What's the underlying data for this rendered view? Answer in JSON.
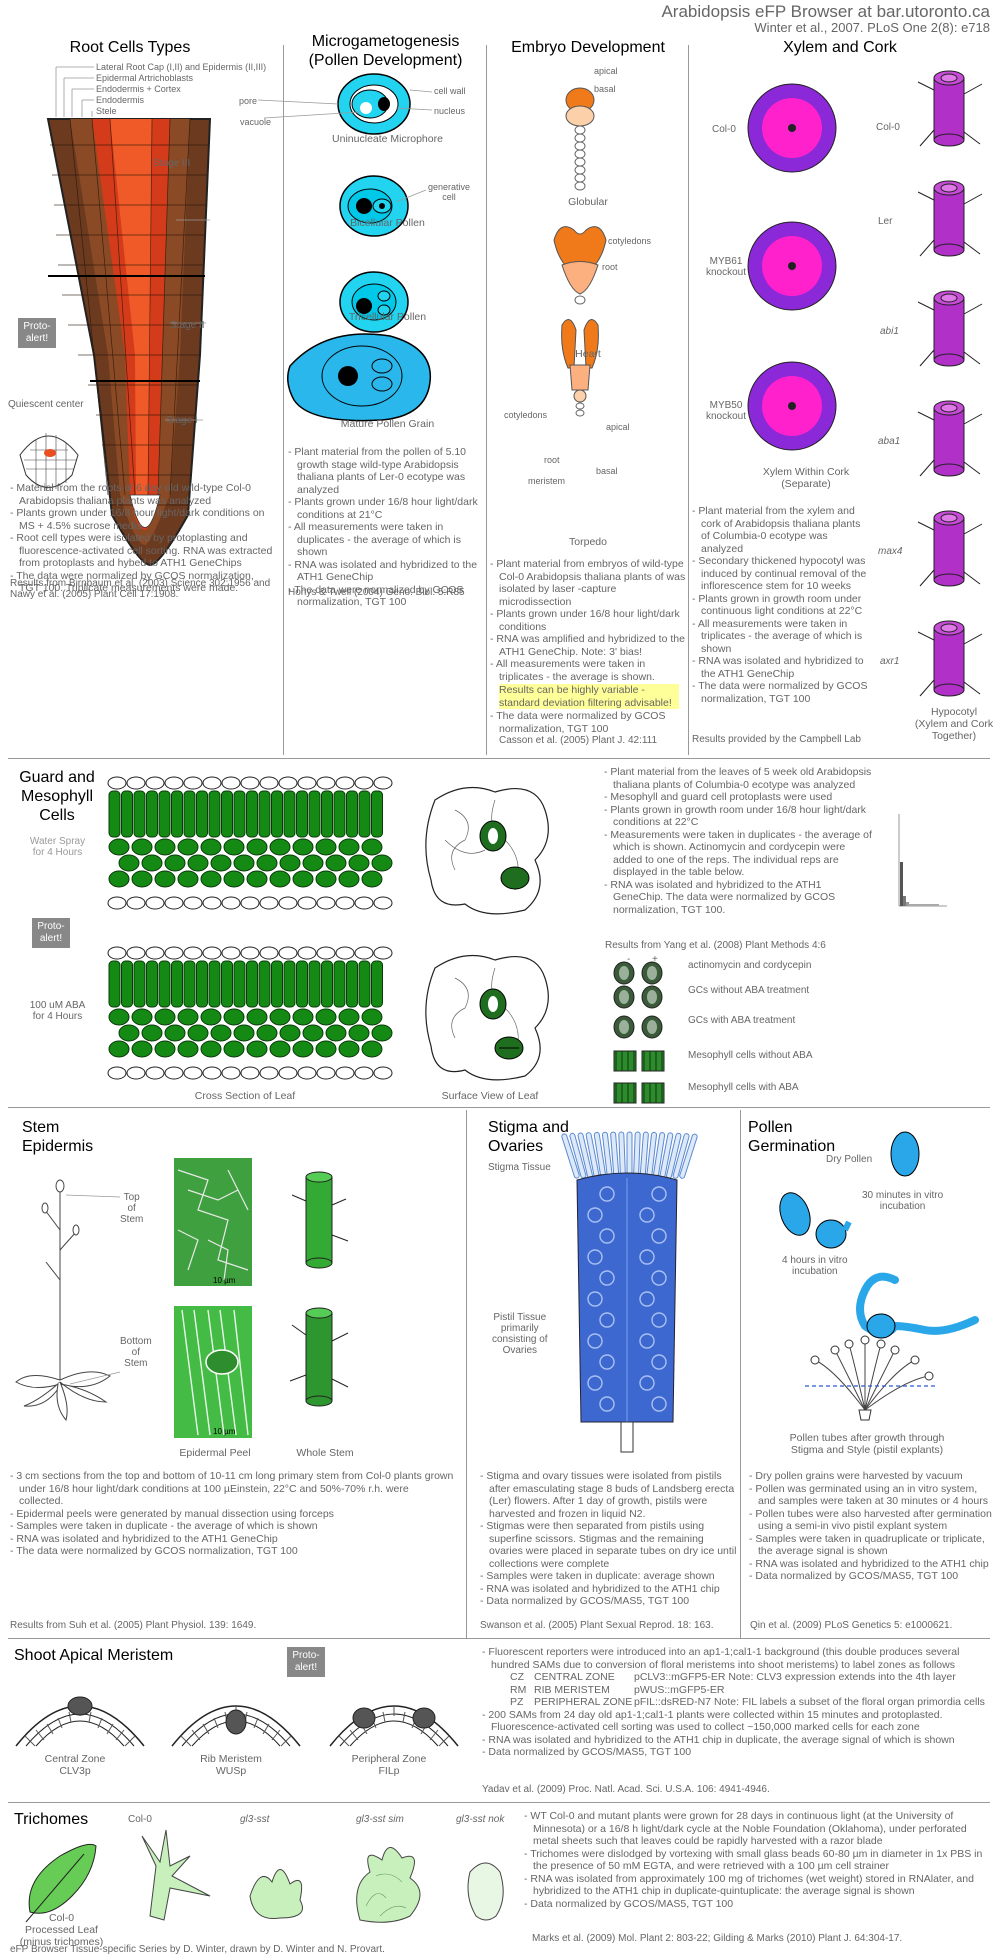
{
  "header": {
    "title": "Arabidopsis eFP Browser at bar.utoronto.ca",
    "citation": "Winter et al., 2007. PLoS One 2(8): e718"
  },
  "root": {
    "title": "Root Cells Types",
    "legend": [
      "Lateral Root Cap (I,II) and Epidermis (II,III)",
      "Epidermal Artrichoblasts",
      "Endodermis + Cortex",
      "Endodermis",
      "Stele"
    ],
    "stage3": "Stage III",
    "stage2": "Stage II",
    "stage1": "Stage I",
    "quiescent": "Quiescent center",
    "proto": "Proto-\nalert!",
    "notes": [
      "Material from the roots of 6 day old wild-type Col-0 Arabidopsis thaliana plants was analyzed",
      "Plants grown under 16/8 hour light/dark conditions on MS + 4.5% sucrose media",
      "Root cell types were isolated by protoplasting and fluorescence-activated cell sorting. RNA was extracted from protoplasts and hybed to ATH1 GeneChips",
      "The data were normalized by GCOS normalization, TGT 100. Triplicate measurements were made."
    ],
    "cite": "Results from Birnbaum et al. (2003) Science 302:1956 and Nawy et al. (2005) Plant Cell 17:1908."
  },
  "pollen": {
    "title": "Microgametogenesis\n(Pollen Development)",
    "labels": {
      "pore": "pore",
      "vacuole": "vacuole",
      "cellwall": "cell wall",
      "nucleus": "nucleus",
      "generative": "generative\ncell"
    },
    "stages": [
      "Uninucleate Microphore",
      "Bicellular Pollen",
      "Tricellular Pollen",
      "Mature Pollen Grain"
    ],
    "notes": [
      "Plant material from the pollen of 5.10 growth stage wild-type Arabidopsis thaliana plants of Ler-0 ecotype was analyzed",
      "Plants grown under 16/8 hour light/dark conditions at 21°C",
      "All measurements were taken in duplicates - the average of which is shown",
      "RNA was isolated and hybridized to the ATH1 GeneChip",
      "The data were normalized by GCOS normalization, TGT 100"
    ],
    "cite": "Honys & Twell (2004) Geno. Biol. 5:R85"
  },
  "embryo": {
    "title": "Embryo Development",
    "labels": {
      "apical": "apical",
      "basal": "basal",
      "cotyledons": "cotyledons",
      "root": "root",
      "meristem": "meristem"
    },
    "stages": [
      "Globular",
      "Heart",
      "Torpedo"
    ],
    "notes": [
      "Plant material from embryos of wild-type Col-0 Arabidopsis thaliana plants of was isolated by laser -capture microdissection",
      "Plants grown under 16/8 hour light/dark conditions",
      "RNA was amplified and hybridized to the ATH1 GeneChip. Note: 3' bias!",
      "All measurements were taken in triplicates - the average is shown."
    ],
    "highlight": "Results can be highly variable - standard deviation filtering advisable!",
    "notes2": [
      "The data were normalized by GCOS normalization, TGT 100"
    ],
    "cite": "Casson et al. (2005) Plant J. 42:111"
  },
  "xylem": {
    "title": "Xylem and Cork",
    "left_labels": [
      "Col-0",
      "MYB61\nknockout",
      "MYB50\nknockout"
    ],
    "left_caption": "Xylem Within Cork\n(Separate)",
    "right_labels": [
      "Col-0",
      "Ler",
      "abi1",
      "aba1",
      "max4",
      "axr1"
    ],
    "right_caption": "Hypocotyl\n(Xylem and Cork\nTogether)",
    "notes": [
      "Plant material from the xylem and cork of Arabidopsis thaliana plants of Columbia-0 ecotype was analyzed",
      "Secondary thickened hypocotyl was induced by continual removal of the inflorescence stem for 10 weeks",
      "Plants grown in growth room under continuous light conditions at 22°C",
      "All measurements were taken in triplicates - the average of which is shown",
      "RNA was isolated and hybridized to the ATH1 GeneChip",
      "The data were normalized by GCOS normalization, TGT 100"
    ],
    "cite": "Results provided by the Campbell Lab"
  },
  "guard": {
    "title": "Guard and\nMesophyll\nCells",
    "water": "Water Spray\nfor 4 Hours",
    "aba": "100 uM ABA\nfor 4 Hours",
    "proto": "Proto-\nalert!",
    "cross": "Cross Section of Leaf",
    "surface": "Surface View of Leaf",
    "notes": [
      "Plant material from the leaves of 5 week old Arabidopsis thaliana plants of Columbia-0 ecotype was analyzed",
      "Mesophyll and guard cell protoplasts were used",
      "Plants grown in growth room under 16/8 hour light/dark conditions at 22°C",
      "Measurements were taken in duplicates - the average of which is shown. Actinomycin and cordycepin were added to one of the reps. The individual reps are displayed in the table below.",
      "RNA was isolated and hybridized to the ATH1 GeneChip. The data were normalized by GCOS normalization, TGT 100."
    ],
    "cite": "Results from Yang et al. (2008) Plant Methods 4:6",
    "table_head": [
      "-",
      "+"
    ],
    "table_rows": [
      "actinomycin and cordycepin",
      "GCs without ABA treatment",
      "GCs with ABA treatment",
      "Mesophyll cells without ABA",
      "Mesophyll cells with ABA"
    ]
  },
  "stem": {
    "title": "Stem\nEpidermis",
    "top": "Top\nof\nStem",
    "bottom": "Bottom\nof\nStem",
    "scale": "10 µm",
    "peel": "Epidermal Peel",
    "whole": "Whole Stem",
    "notes": [
      "3 cm sections from the top and bottom of 10-11 cm long primary stem from Col-0 plants grown under 16/8 hour light/dark conditions at 100 µEinstein, 22°C and 50%-70% r.h. were collected.",
      "Epidermal peels were generated by manual dissection using forceps",
      "Samples were taken in duplicate - the average of which is shown",
      "RNA was isolated and hybridized to the ATH1 GeneChip",
      "The data were normalized by GCOS normalization, TGT 100"
    ],
    "cite": "Results from Suh et al. (2005) Plant Physiol. 139: 1649."
  },
  "stigma": {
    "title": "Stigma and\nOvaries",
    "stigma_tissue": "Stigma Tissue",
    "pistil": "Pistil Tissue\nprimarily\nconsisting of\nOvaries",
    "notes": [
      "Stigma and ovary tissues were isolated from pistils after emasculating stage 8 buds of Landsberg erecta (Ler) flowers. After 1 day of growth, pistils were harvested and frozen in liquid N2.",
      "Stigmas were then separated from pistils using superfine scissors. Stigmas and the remaining ovaries were placed in separate tubes on dry ice until collections were complete",
      "Samples were taken in duplicate: average shown",
      "RNA was isolated and hybridized to the ATH1 chip",
      "Data normalized by GCOS/MAS5, TGT 100"
    ],
    "cite": "Swanson et al. (2005) Plant Sexual Reprod. 18: 163."
  },
  "germ": {
    "title": "Pollen\nGermination",
    "dry": "Dry Pollen",
    "min30": "30 minutes in vitro\nincubation",
    "hr4": "4 hours in vitro\nincubation",
    "tubes": "Pollen tubes after growth through\nStigma and Style (pistil explants)",
    "notes": [
      "Dry pollen grains were harvested by vacuum",
      "Pollen was germinated using an in vitro system, and samples were taken at 30 minutes or 4 hours",
      "Pollen tubes were also harvested after germination using a semi-in vivo pistil explant system",
      "Samples were taken in quadruplicate or triplicate, the average signal is shown",
      "RNA was isolated and hybridized to the ATH1 chip",
      "Data normalized by GCOS/MAS5, TGT 100"
    ],
    "cite": "Qin et al. (2009) PLoS Genetics 5: e1000621."
  },
  "sam": {
    "title": "Shoot Apical Meristem",
    "proto": "Proto-\nalert!",
    "zones": [
      "Central Zone\nCLV3p",
      "Rib Meristem\nWUSp",
      "Peripheral Zone\nFILp"
    ],
    "intro": "Fluorescent reporters were introduced into an ap1-1;cal1-1 background (this double produces several hundred SAMs due to conversion of floral meristems into shoot meristems) to label zones as follows",
    "zone_rows": [
      [
        "CZ",
        "CENTRAL ZONE",
        "pCLV3::mGFP5-ER Note: CLV3 expression extends into the 4th layer"
      ],
      [
        "RM",
        "RIB MERISTEM",
        "pWUS::mGFP5-ER"
      ],
      [
        "PZ",
        "PERIPHERAL ZONE",
        "pFIL::dsRED-N7 Note: FIL labels a subset of the floral organ primordia cells"
      ]
    ],
    "notes": [
      "200 SAMs from 24 day old ap1-1;cal1-1 plants were collected within 15 minutes and protoplasted. Fluorescence-activated cell sorting was used to collect ~150,000 marked cells for each zone",
      "RNA was isolated and hybridized to the ATH1 chip in duplicate, the average signal of which is shown",
      "Data normalized by GCOS/MAS5, TGT 100"
    ],
    "cite": "Yadav et al. (2009) Proc. Natl. Acad. Sci. U.S.A. 106: 4941-4946."
  },
  "trich": {
    "title": "Trichomes",
    "leaf": "Col-0\nProcessed Leaf\n(minus trichomes)",
    "types": [
      "Col-0",
      "gl3-sst",
      "gl3-sst sim",
      "gl3-sst nok"
    ],
    "notes": [
      "WT Col-0 and mutant plants were grown for 28 days in continuous light (at the University of Minnesota) or a 16/8 h light/dark cycle at the Noble Foundation (Oklahoma), under perforated metal sheets such that leaves could be rapidly harvested with a razor blade",
      "Trichomes were dislodged by vortexing with small glass beads 60-80 µm in diameter in 1x PBS in the presence of 50 mM EGTA, and were retrieved with a 100 µm cell strainer",
      "RNA was isolated from approximately 100 mg of trichomes (wet weight) stored in RNAlater, and hybridized to the ATH1 chip in duplicate-quintuplicate: the average signal is shown",
      "Data normalized by GCOS/MAS5, TGT 100"
    ],
    "cite": "Marks et al. (2009) Mol. Plant 2: 803-22; Gilding & Marks (2010) Plant J. 64:304-17."
  },
  "footer": "eFP Browser Tissue-specific Series by D. Winter, drawn by D. Winter and N. Provart."
}
